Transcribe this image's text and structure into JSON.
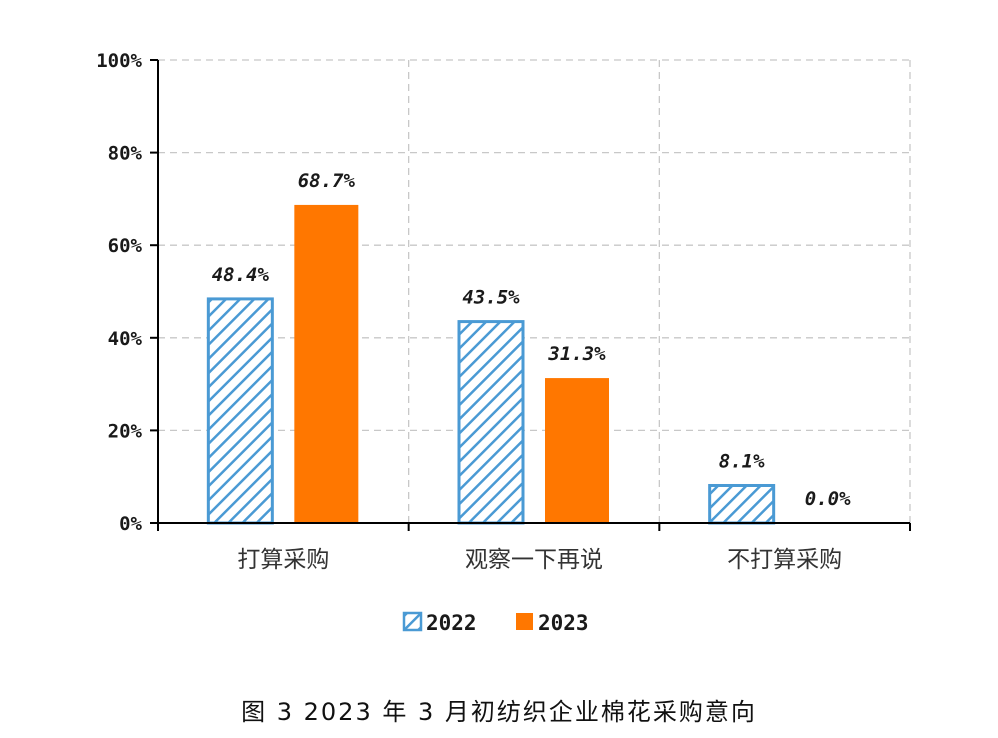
{
  "caption": "图 3    2023 年 3 月初纺织企业棉花采购意向",
  "chart_data": {
    "type": "bar",
    "categories": [
      "打算采购",
      "观察一下再说",
      "不打算采购"
    ],
    "series": [
      {
        "name": "2022",
        "values": [
          48.4,
          43.5,
          8.1
        ],
        "labels": [
          "48.4%",
          "43.5%",
          "8.1%"
        ],
        "color": "#4a9ad4",
        "pattern": "hatched"
      },
      {
        "name": "2023",
        "values": [
          68.7,
          31.3,
          0.0
        ],
        "labels": [
          "68.7%",
          "31.3%",
          "0.0%"
        ],
        "color": "#ff7700",
        "pattern": "solid"
      }
    ],
    "ylim": [
      0,
      100
    ],
    "yticks": [
      "0%",
      "20%",
      "40%",
      "60%",
      "80%",
      "100%"
    ],
    "grid": true,
    "legend": "bottom-center"
  }
}
